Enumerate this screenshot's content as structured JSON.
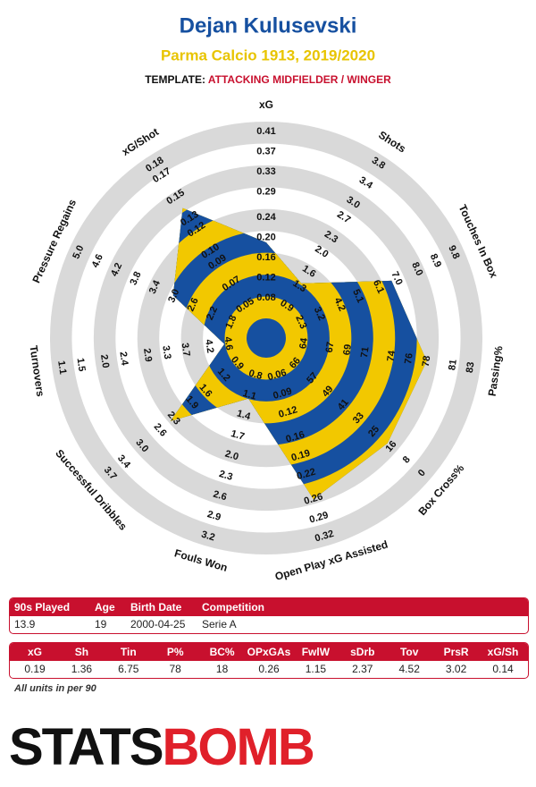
{
  "chart_data": {
    "type": "radar",
    "title": "Dejan Kulusevski",
    "subtitle": "Parma Calcio 1913, 2019/2020",
    "template_label": "TEMPLATE:",
    "template": "ATTACKING MIDFIELDER / WINGER",
    "colors": [
      "#f2c800",
      "#1650a0"
    ],
    "ring_colors": [
      "#d9d9d9",
      "#ffffff"
    ],
    "axes": [
      {
        "name": "xG",
        "lim": [
          0,
          0.43
        ],
        "ticks": [
          0.08,
          0.12,
          0.16,
          {
            "value": 0.2,
            "label": "0.20"
          },
          0.24,
          0.29,
          0.33,
          0.37,
          0.41
        ]
      },
      {
        "name": "Shots",
        "lim": [
          0.25,
          3.95
        ],
        "ticks": [
          0.9,
          1.3,
          1.6,
          {
            "value": 2,
            "label": "2.0"
          },
          2.3,
          2.7,
          {
            "value": 3,
            "label": "3.0"
          },
          3.4,
          3.8
        ]
      },
      {
        "name": "Touches In Box",
        "lim": [
          0.6,
          10.25
        ],
        "ticks": [
          2.3,
          3.2,
          4.2,
          5.1,
          6.1,
          {
            "value": 7,
            "label": "7.0"
          },
          {
            "value": 8,
            "label": "8.0"
          },
          8.9,
          9.8
        ]
      },
      {
        "name": "Passing%",
        "lim": [
          59.7,
          84.1
        ],
        "ticks": [
          64,
          67,
          69,
          71,
          74,
          76,
          78,
          81,
          83
        ]
      },
      {
        "name": "Box Cross%",
        "lim": [
          81.1,
          -3.9
        ],
        "ticks": [
          66,
          57,
          49,
          41,
          33,
          25,
          16,
          8,
          0
        ]
      },
      {
        "name": "Open Play xG Assisted",
        "lim": [
          0,
          0.335
        ],
        "ticks": [
          0.06,
          0.09,
          0.12,
          0.16,
          0.19,
          0.22,
          0.26,
          0.29,
          0.32
        ]
      },
      {
        "name": "Fouls Won",
        "lim": [
          0.25,
          3.34
        ],
        "ticks": [
          0.8,
          1.1,
          1.4,
          1.7,
          {
            "value": 2,
            "label": "2.0"
          },
          2.3,
          2.6,
          2.9,
          3.2
        ]
      },
      {
        "name": "Successful Dribbles",
        "lim": [
          0.26,
          3.86
        ],
        "ticks": [
          0.9,
          1.2,
          1.6,
          1.9,
          2.3,
          2.6,
          {
            "value": 3,
            "label": "3.0"
          },
          3.4,
          3.7
        ]
      },
      {
        "name": "Turnovers",
        "lim": [
          5.4,
          0.9
        ],
        "ticks": [
          4.6,
          4.2,
          3.7,
          3.3,
          2.9,
          2.4,
          {
            "value": 2,
            "label": "2.0"
          },
          1.5,
          1.1
        ]
      },
      {
        "name": "Pressure Regains",
        "lim": [
          1.07,
          5.19
        ],
        "ticks": [
          1.8,
          2.2,
          2.6,
          {
            "value": 3,
            "label": "3.0"
          },
          3.4,
          3.8,
          4.2,
          4.6,
          {
            "value": 5,
            "label": "5.0"
          }
        ]
      },
      {
        "name": "xG/Shot",
        "lim": [
          0.02,
          0.188
        ],
        "ticks": [
          0.05,
          0.07,
          0.09,
          {
            "value": 0.1,
            "label": "0.10"
          },
          0.12,
          0.13,
          0.15,
          0.17,
          0.18
        ]
      }
    ],
    "values": [
      0.19,
      1.36,
      6.75,
      78,
      18,
      0.26,
      1.15,
      2.37,
      4.52,
      3.02,
      0.14
    ]
  },
  "player_table": {
    "header": [
      "90s Played",
      "Age",
      "Birth Date",
      "Competition"
    ],
    "rows": [
      [
        13.9,
        19,
        "2000-04-25",
        "Serie A"
      ]
    ]
  },
  "stats_table": {
    "header": [
      "xG",
      "Sh",
      "Tin",
      "P%",
      "BC%",
      "OPxGAs",
      "FwlW",
      "sDrb",
      "Tov",
      "PrsR",
      "xG/Sh"
    ],
    "rows": [
      [
        0.19,
        1.36,
        6.75,
        78,
        18,
        0.26,
        1.15,
        2.37,
        4.52,
        3.02,
        0.14
      ]
    ]
  },
  "note": "All units in per 90",
  "logo": {
    "left": "STATS",
    "right": "BOMB"
  }
}
